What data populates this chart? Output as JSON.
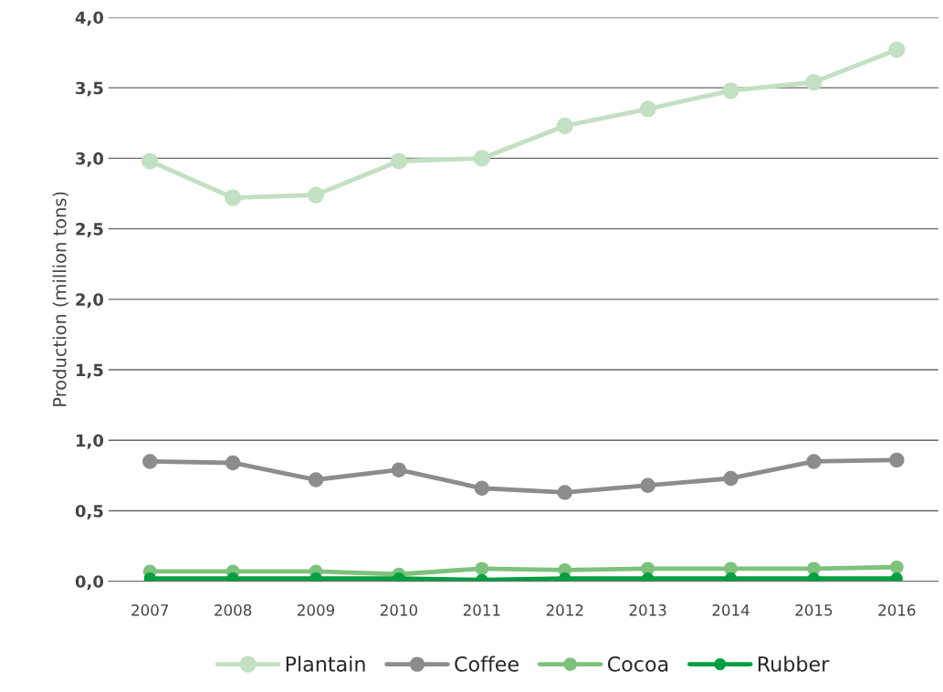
{
  "chart_data": {
    "type": "line",
    "ylabel": "Production (million tons)",
    "categories": [
      "2007",
      "2008",
      "2009",
      "2010",
      "2011",
      "2012",
      "2013",
      "2014",
      "2015",
      "2016"
    ],
    "series": [
      {
        "name": "Plantain",
        "color": "#c2e0c2",
        "values": [
          2.98,
          2.72,
          2.74,
          2.98,
          3.0,
          3.23,
          3.35,
          3.48,
          3.54,
          3.77
        ]
      },
      {
        "name": "Coffee",
        "color": "#8c8c8c",
        "values": [
          0.85,
          0.84,
          0.72,
          0.79,
          0.66,
          0.63,
          0.68,
          0.73,
          0.85,
          0.86
        ]
      },
      {
        "name": "Cocoa",
        "color": "#7cc27c",
        "values": [
          0.07,
          0.07,
          0.07,
          0.05,
          0.09,
          0.08,
          0.09,
          0.09,
          0.09,
          0.1
        ]
      },
      {
        "name": "Rubber",
        "color": "#00a040",
        "values": [
          0.02,
          0.02,
          0.02,
          0.02,
          0.01,
          0.02,
          0.02,
          0.02,
          0.02,
          0.02
        ]
      }
    ],
    "ylim": [
      0,
      4
    ],
    "yticks": [
      {
        "value": 0,
        "label": "0,0"
      },
      {
        "value": 0.5,
        "label": "0,5"
      },
      {
        "value": 1,
        "label": "1,0"
      },
      {
        "value": 1.5,
        "label": "1,5"
      },
      {
        "value": 2,
        "label": "2,0"
      },
      {
        "value": 2.5,
        "label": "2,5"
      },
      {
        "value": 3,
        "label": "3,0"
      },
      {
        "value": 3.5,
        "label": "3,5"
      },
      {
        "value": 4,
        "label": "4,0"
      }
    ],
    "grid": "y",
    "legend": "bottom",
    "marker": "circle",
    "line_style": "solid"
  }
}
